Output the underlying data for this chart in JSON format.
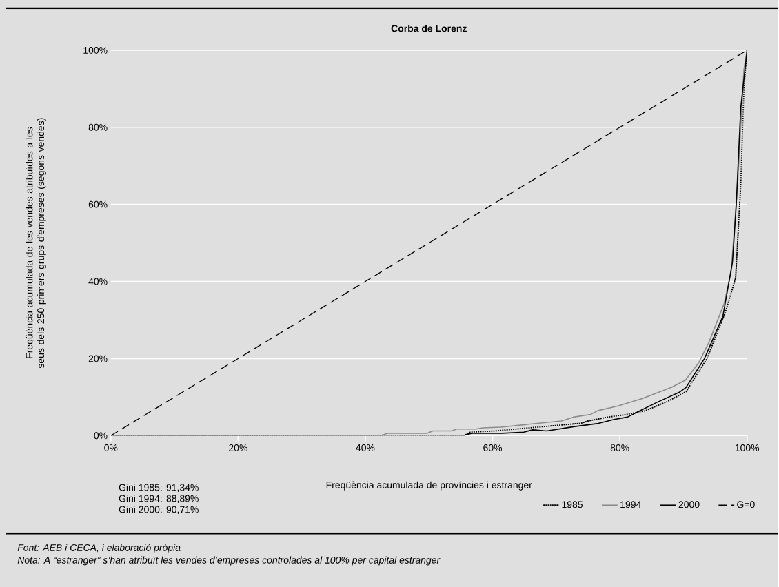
{
  "chart_data": {
    "type": "line",
    "title": "Corba de Lorenz",
    "xlabel": "Freqüència acumulada de províncies i estranger",
    "ylabel": "Freqüència acumulada de les vendes atribuïdes a les seus dels 250 primers grups d'empreses (segons vendes)",
    "xlim": [
      0,
      100
    ],
    "ylim": [
      0,
      100
    ],
    "xticks": [
      {
        "value": 0,
        "label": "0%"
      },
      {
        "value": 20,
        "label": "20%"
      },
      {
        "value": 40,
        "label": "40%"
      },
      {
        "value": 60,
        "label": "60%"
      },
      {
        "value": 80,
        "label": "80%"
      },
      {
        "value": 100,
        "label": "100%"
      }
    ],
    "yticks": [
      {
        "value": 0,
        "label": "0%"
      },
      {
        "value": 20,
        "label": "20%"
      },
      {
        "value": 40,
        "label": "40%"
      },
      {
        "value": 60,
        "label": "60%"
      },
      {
        "value": 80,
        "label": "80%"
      },
      {
        "value": 100,
        "label": "100%"
      }
    ],
    "grid": "y",
    "legend": "bottom right",
    "marker": "none",
    "series": [
      {
        "name": "1985",
        "color": "#000000",
        "line_style": "dotted",
        "x": [
          0,
          55.5,
          56.5,
          60.3,
          65.7,
          73.9,
          75.0,
          78.1,
          80.8,
          83.9,
          87.4,
          90.4,
          93.7,
          96.6,
          97.5,
          98.2,
          98.5,
          99.0,
          99.5,
          100
        ],
        "values": [
          0,
          0,
          0.9,
          1.2,
          2.0,
          3.2,
          3.8,
          4.8,
          5.4,
          6.4,
          8.8,
          11.4,
          20.0,
          32.1,
          37,
          41,
          50,
          65,
          90,
          100
        ]
      },
      {
        "name": "1994",
        "color": "#8c8c8c",
        "line_style": "solid",
        "x": [
          0,
          42.4,
          43.5,
          49.7,
          50.6,
          53.6,
          54.3,
          57.3,
          58.5,
          61.3,
          70.8,
          72.7,
          75.4,
          76.6,
          79.7,
          83.5,
          88.1,
          90.3,
          92.4,
          94.0,
          96.4,
          97.5,
          98.5,
          99.5,
          100
        ],
        "values": [
          0,
          0,
          0.6,
          0.6,
          1.2,
          1.2,
          1.7,
          1.7,
          2.0,
          2.2,
          3.8,
          4.8,
          5.5,
          6.5,
          7.7,
          9.6,
          12.5,
          14.4,
          18.9,
          24.2,
          34.3,
          42.6,
          65,
          95,
          100
        ]
      },
      {
        "name": "2000",
        "color": "#000000",
        "line_style": "solid",
        "x": [
          0,
          55.5,
          56.7,
          61.5,
          64.9,
          66.3,
          68.5,
          72.7,
          76.4,
          79.1,
          81.2,
          83.1,
          85.8,
          89.3,
          90.4,
          93.3,
          96.2,
          97.7,
          98.3,
          99.0,
          100
        ],
        "values": [
          0,
          0,
          0.6,
          0.6,
          0.9,
          1.5,
          1.2,
          2.3,
          3.1,
          4.2,
          4.8,
          6.4,
          8.6,
          11.2,
          12.5,
          20.0,
          31.0,
          45.0,
          60,
          85,
          100
        ]
      },
      {
        "name": "G=0",
        "color": "#000000",
        "line_style": "dashed",
        "x": [
          0,
          100
        ],
        "values": [
          0,
          100
        ]
      }
    ],
    "annotations": [
      "Gini 1985: 91,34%",
      "Gini 1994: 88,89%",
      "Gini 2000: 90,71%",
      "Font: AEB i CECA, i elaboració pròpia",
      "Nota: A “estranger” s’han atribuït les vendes d’empreses controlades al 100% per capital estranger"
    ]
  }
}
